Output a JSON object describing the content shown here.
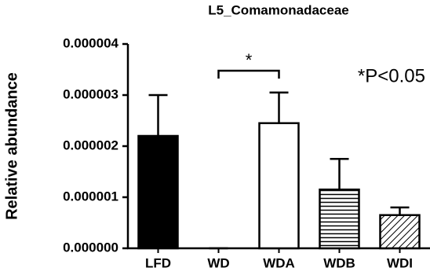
{
  "chart_data": {
    "type": "bar",
    "title": "L5_Comamonadaceae",
    "y_label": "Relative abundance",
    "categories": [
      "LFD",
      "WD",
      "WDA",
      "WDB",
      "WDI"
    ],
    "values": [
      2.2e-06,
      0,
      2.45e-06,
      1.15e-06,
      6.5e-07
    ],
    "errors": [
      8e-07,
      0,
      6e-07,
      6e-07,
      1.5e-07
    ],
    "fills": [
      "solid",
      "solid",
      "outline",
      "horizontal",
      "diagonal"
    ],
    "color": "#000000",
    "ylim": [
      0,
      4e-06
    ],
    "yticks": [
      {
        "value": 0,
        "label": "0.000000"
      },
      1e-06,
      2e-06,
      3e-06,
      4e-06
    ],
    "significance": {
      "label": "*",
      "between": [
        1,
        2
      ]
    },
    "annotation": "*P<0.05"
  }
}
